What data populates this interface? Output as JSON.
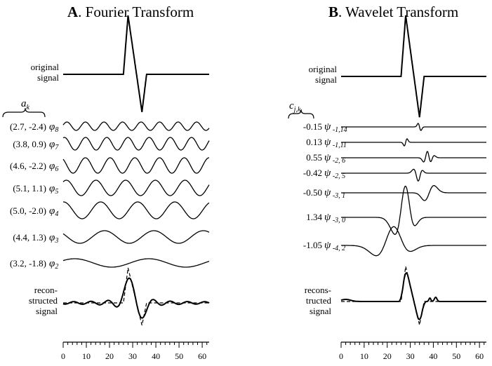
{
  "panel_a": {
    "letter": "A",
    "title": ". Fourier Transform",
    "original_label": [
      "original",
      "signal"
    ],
    "coef_header": "a",
    "coef_header_sub": "k",
    "basis_symbol": "φ",
    "rows": [
      {
        "coef": "(2.7, -2.4)",
        "sub": "8"
      },
      {
        "coef": "(3.8, 0.9)",
        "sub": "7"
      },
      {
        "coef": "(4.6, -2.2)",
        "sub": "6"
      },
      {
        "coef": "(5.1, 1.1)",
        "sub": "5"
      },
      {
        "coef": "(5.0, -2.0)",
        "sub": "4"
      },
      {
        "coef": "(4.4, 1.3)",
        "sub": "3"
      },
      {
        "coef": "(3.2, -1.8)",
        "sub": "2"
      }
    ],
    "reconstructed_label": [
      "recon-",
      "structed",
      "signal"
    ]
  },
  "panel_b": {
    "letter": "B",
    "title": ". Wavelet Transform",
    "original_label": [
      "original",
      "signal"
    ],
    "coef_header": "c",
    "coef_header_sub": "j,k",
    "basis_symbol": "ψ",
    "rows": [
      {
        "coef": "-0.15",
        "sub": "-1,14"
      },
      {
        "coef": "0.13",
        "sub": "-1,11"
      },
      {
        "coef": "0.55",
        "sub": "-2, 6"
      },
      {
        "coef": "-0.42",
        "sub": "-2, 5"
      },
      {
        "coef": "-0.50",
        "sub": "-3, 1"
      },
      {
        "coef": "1.34",
        "sub": "-3, 0"
      },
      {
        "coef": "-1.05",
        "sub": "-4, 2"
      }
    ],
    "reconstructed_label": [
      "recons-",
      "tructed",
      "signal"
    ]
  },
  "x_axis": {
    "range": [
      0,
      63
    ],
    "ticks": [
      "0",
      "10",
      "20",
      "30",
      "40",
      "50",
      "60"
    ]
  }
}
